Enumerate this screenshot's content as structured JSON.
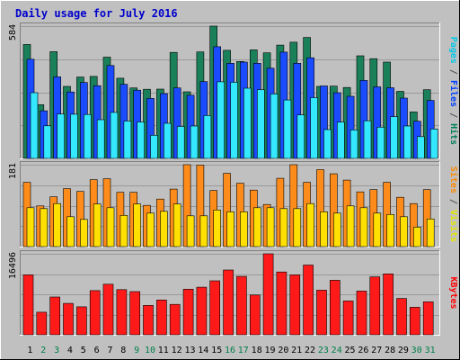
{
  "chart_data": {
    "type": "bar",
    "title": "Daily usage for July 2016",
    "categories": [
      "1",
      "2",
      "3",
      "4",
      "5",
      "6",
      "7",
      "8",
      "9",
      "10",
      "11",
      "12",
      "13",
      "14",
      "15",
      "16",
      "17",
      "18",
      "19",
      "20",
      "21",
      "22",
      "23",
      "24",
      "25",
      "26",
      "27",
      "28",
      "29",
      "30",
      "31"
    ],
    "weekend_days": [
      "2",
      "3",
      "9",
      "10",
      "16",
      "17",
      "23",
      "24",
      "30",
      "31"
    ],
    "panels": [
      {
        "id": "top",
        "max_label": "584",
        "ymax": 584,
        "side_labels": [
          {
            "text": "Pages",
            "color": "#00c8e8"
          },
          {
            "text": " / ",
            "color": "#505050"
          },
          {
            "text": "Files",
            "color": "#0040ff"
          },
          {
            "text": " / ",
            "color": "#505050"
          },
          {
            "text": "Hits",
            "color": "#00805a"
          }
        ],
        "series": [
          {
            "name": "Hits",
            "color": "#1a805a",
            "values": [
              503,
              237,
              471,
              318,
              359,
              362,
              447,
              354,
              311,
              305,
              306,
              468,
              294,
              470,
              584,
              477,
              428,
              479,
              466,
              500,
              513,
              534,
              318,
              319,
              313,
              453,
              440,
              425,
              296,
              205,
              303
            ]
          },
          {
            "name": "Files",
            "color": "#1a4bff",
            "values": [
              438,
              210,
              360,
              293,
              335,
              321,
              410,
              327,
              301,
              265,
              286,
              311,
              279,
              339,
              493,
              420,
              425,
              420,
              398,
              469,
              420,
              444,
              320,
              290,
              274,
              344,
              316,
              312,
              266,
              164,
              256
            ]
          },
          {
            "name": "Pages",
            "color": "#33e8ff",
            "values": [
              290,
              144,
              196,
              195,
              194,
              171,
              203,
              165,
              161,
              102,
              155,
              141,
              143,
              189,
              338,
              336,
              310,
              303,
              285,
              258,
              192,
              268,
              127,
              160,
              126,
              166,
              138,
              184,
              143,
              96,
              130
            ]
          }
        ]
      },
      {
        "id": "middle",
        "max_label": "181",
        "ymax": 181,
        "side_labels": [
          {
            "text": "Sites",
            "color": "#ff8800"
          },
          {
            "text": " / ",
            "color": "#505050"
          },
          {
            "text": "Visits",
            "color": "#e8e800"
          }
        ],
        "series": [
          {
            "name": "Visits",
            "color": "#ff8c1a",
            "values": [
              142,
              90,
              110,
              128,
              122,
              148,
              150,
              120,
              120,
              91,
              105,
              127,
              181,
              180,
              124,
              162,
              140,
              125,
              93,
              151,
              181,
              142,
              170,
              161,
              147,
              121,
              126,
              142,
              109,
              95,
              126
            ]
          },
          {
            "name": "Sites",
            "color": "#ffe000",
            "values": [
              86,
              84,
              95,
              66,
              60,
              94,
              86,
              69,
              94,
              74,
              78,
              94,
              68,
              68,
              81,
              77,
              77,
              86,
              86,
              84,
              84,
              95,
              77,
              74,
              90,
              86,
              74,
              71,
              66,
              43,
              61
            ]
          }
        ]
      },
      {
        "id": "bottom",
        "max_label": "16496",
        "ymax": 16496,
        "side_labels": [
          {
            "text": "KBytes",
            "color": "#ff0000"
          }
        ],
        "series": [
          {
            "name": "KBytes",
            "color": "#ff1a1a",
            "values": [
              12200,
              4600,
              7700,
              6400,
              5700,
              9000,
              10300,
              9200,
              8800,
              6000,
              7100,
              6200,
              9300,
              9700,
              11000,
              13200,
              11900,
              8100,
              16500,
              12800,
              12200,
              14200,
              9100,
              11100,
              6900,
              8900,
              11800,
              12400,
              7400,
              5600,
              6700
            ]
          }
        ]
      }
    ]
  }
}
